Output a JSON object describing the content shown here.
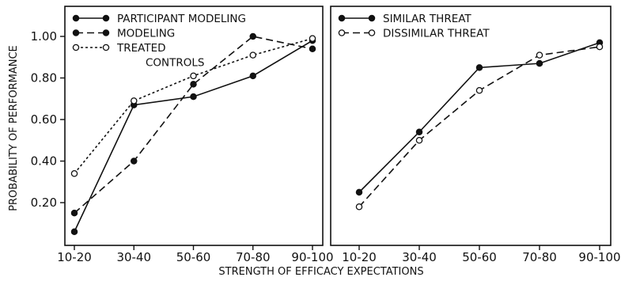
{
  "shared": {
    "ylabel": "PROBABILITY OF PERFORMANCE",
    "xlabel": "STRENGTH OF EFFICACY EXPECTATIONS"
  },
  "chart_data": [
    {
      "type": "line",
      "categories": [
        "10-20",
        "30-40",
        "50-60",
        "70-80",
        "90-100"
      ],
      "xlabel": "STRENGTH OF EFFICACY EXPECTATIONS",
      "ylabel": "PROBABILITY OF PERFORMANCE",
      "ylim": [
        0,
        1.1
      ],
      "yticks": [
        0.2,
        0.4,
        0.6,
        0.8,
        1.0
      ],
      "ytick_labels": [
        "0.20",
        "0.40",
        "0.60",
        "0.80",
        "1.00"
      ],
      "legend_position": "top-left",
      "grid": false,
      "series": [
        {
          "name": "PARTICIPANT MODELING",
          "values": [
            0.06,
            0.67,
            0.71,
            0.81,
            0.98
          ],
          "style": "solid",
          "marker": "filled"
        },
        {
          "name": "MODELING",
          "values": [
            0.15,
            0.4,
            0.77,
            1.0,
            0.94
          ],
          "style": "dashed",
          "marker": "filled"
        },
        {
          "name": "TREATED CONTROLS",
          "values": [
            0.34,
            0.69,
            0.81,
            0.91,
            0.99
          ],
          "style": "dotted",
          "marker": "open"
        }
      ]
    },
    {
      "type": "line",
      "categories": [
        "10-20",
        "30-40",
        "50-60",
        "70-80",
        "90-100"
      ],
      "xlabel": "STRENGTH OF EFFICACY EXPECTATIONS",
      "ylim": [
        0,
        1.1
      ],
      "legend_position": "top-left",
      "grid": false,
      "series": [
        {
          "name": "SIMILAR THREAT",
          "values": [
            0.25,
            0.54,
            0.85,
            0.87,
            0.97
          ],
          "style": "solid",
          "marker": "filled"
        },
        {
          "name": "DISSIMILAR THREAT",
          "values": [
            0.18,
            0.5,
            0.74,
            0.91,
            0.95
          ],
          "style": "dashed",
          "marker": "open"
        }
      ]
    }
  ]
}
